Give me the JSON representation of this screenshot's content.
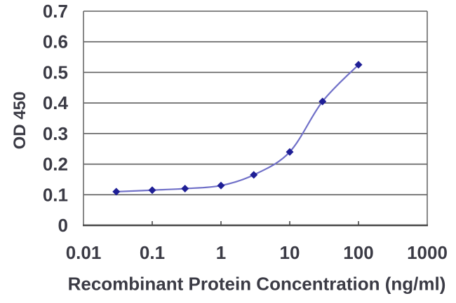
{
  "chart_data": {
    "type": "line",
    "title": "",
    "xlabel": "Recombinant Protein Concentration (ng/ml)",
    "ylabel": "OD 450",
    "x_scale": "log",
    "xlim": [
      0.01,
      1000
    ],
    "ylim": [
      0,
      0.7
    ],
    "x_tick_values": [
      0.01,
      0.1,
      1,
      10,
      100,
      1000
    ],
    "x_tick_labels": [
      "0.01",
      "0.1",
      "1",
      "10",
      "100",
      "1000"
    ],
    "y_tick_values": [
      0,
      0.1,
      0.2,
      0.3,
      0.4,
      0.5,
      0.6,
      0.7
    ],
    "y_tick_labels": [
      "0",
      "0.1",
      "0.2",
      "0.3",
      "0.4",
      "0.5",
      "0.6",
      "0.7"
    ],
    "grid": "horizontal",
    "legend_position": "none",
    "series": [
      {
        "name": "OD 450",
        "x": [
          0.03,
          0.1,
          0.3,
          1,
          3,
          10,
          30,
          100
        ],
        "y": [
          0.11,
          0.115,
          0.12,
          0.13,
          0.165,
          0.24,
          0.405,
          0.525
        ],
        "marker": "diamond",
        "line_color": "#7070c8",
        "marker_color": "#1f1f96"
      }
    ],
    "colors": {
      "grid": "#5f5f5f",
      "axis": "#474747",
      "border": "#6a6a6a",
      "text": "#3b3b45",
      "background": "#ffffff"
    }
  }
}
